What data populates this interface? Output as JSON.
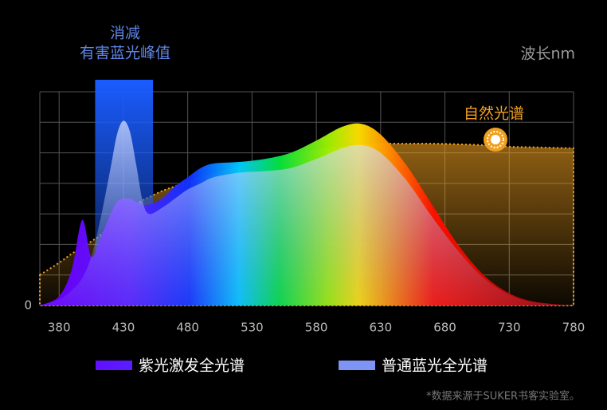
{
  "chart_data": {
    "type": "area",
    "annotations": {
      "highlight_line1": "消减",
      "highlight_line2": "有害蓝光峰值",
      "x_unit": "波长nm",
      "footnote": "*数据来源于SUKER书客实验室。"
    },
    "highlight_range": [
      408,
      453
    ],
    "x": [
      365,
      380,
      390,
      398,
      405,
      412,
      420,
      425,
      430,
      435,
      440,
      445,
      450,
      460,
      470,
      480,
      490,
      500,
      520,
      540,
      560,
      580,
      600,
      615,
      630,
      650,
      670,
      690,
      710,
      730,
      750,
      780
    ],
    "series": [
      {
        "name": "紫光激发全光谱",
        "values": [
          0,
          0.3,
          1.2,
          2.8,
          1.6,
          2.2,
          3.0,
          3.4,
          3.5,
          3.5,
          3.4,
          3.3,
          3.3,
          3.5,
          3.9,
          4.2,
          4.5,
          4.65,
          4.7,
          4.8,
          5.0,
          5.4,
          5.85,
          5.95,
          5.6,
          4.6,
          3.3,
          2.0,
          1.0,
          0.4,
          0.12,
          0
        ]
      },
      {
        "name": "普通蓝光全光谱",
        "color": "#7f95f5",
        "values": [
          0,
          0.2,
          0.5,
          0.9,
          1.6,
          2.8,
          4.5,
          5.6,
          6.05,
          5.7,
          4.6,
          3.4,
          3.0,
          3.2,
          3.5,
          3.8,
          4.0,
          4.2,
          4.35,
          4.4,
          4.5,
          4.8,
          5.15,
          5.25,
          5.0,
          4.1,
          2.9,
          1.8,
          0.9,
          0.35,
          0.1,
          0
        ]
      },
      {
        "name": "自然光谱",
        "color": "#f0a020",
        "values": [
          1.0,
          1.4,
          1.7,
          1.9,
          2.1,
          2.3,
          2.6,
          2.8,
          3.0,
          3.15,
          3.3,
          3.45,
          3.55,
          3.75,
          3.9,
          4.05,
          4.2,
          4.3,
          4.55,
          4.75,
          4.95,
          5.1,
          5.2,
          5.25,
          5.3,
          5.3,
          5.3,
          5.28,
          5.25,
          5.2,
          5.18,
          5.15
        ]
      }
    ],
    "xlim": [
      365,
      780
    ],
    "xticks": [
      380,
      430,
      480,
      530,
      580,
      630,
      680,
      730,
      780
    ],
    "ylim": [
      0,
      7
    ],
    "yticks": [
      0
    ],
    "ygrid": [
      0,
      1,
      2,
      3,
      4,
      5,
      6,
      7
    ],
    "grid": true
  }
}
